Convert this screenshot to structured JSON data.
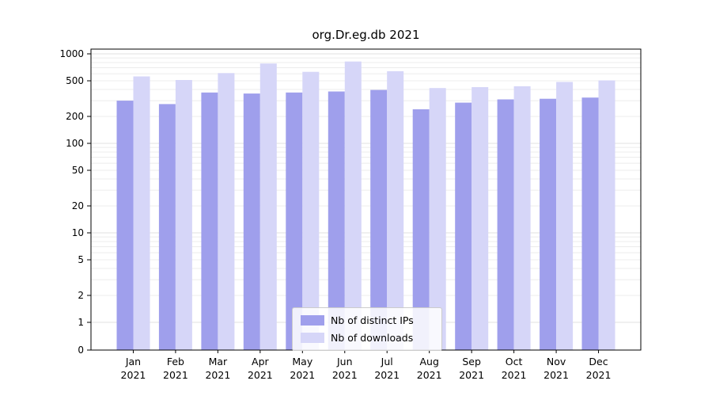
{
  "title": "org.Dr.eg.db 2021",
  "colors": {
    "distinct_ips": "#9f9fec",
    "downloads": "#d6d6f8",
    "grid_minor": "#ececec",
    "grid_major": "#e0e0e0",
    "axis": "#000000",
    "legend_border": "#cccccc",
    "background": "#ffffff"
  },
  "chart_data": {
    "type": "bar",
    "title": "org.Dr.eg.db 2021",
    "xlabel": "",
    "ylabel": "",
    "yscale": "log",
    "ylim": [
      0,
      1000
    ],
    "grid": true,
    "legend_position": "inside-bottom-center",
    "yticks": [
      "1000",
      "500",
      "200",
      "100",
      "50",
      "20",
      "10",
      "5",
      "2",
      "1",
      "0"
    ],
    "categories": [
      "Jan 2021",
      "Feb 2021",
      "Mar 2021",
      "Apr 2021",
      "May 2021",
      "Jun 2021",
      "Jul 2021",
      "Aug 2021",
      "Sep 2021",
      "Oct 2021",
      "Nov 2021",
      "Dec 2021"
    ],
    "series": [
      {
        "name": "Nb of distinct IPs",
        "color": "#9f9fec",
        "values": [
          300,
          275,
          370,
          360,
          370,
          380,
          395,
          240,
          285,
          310,
          315,
          325
        ]
      },
      {
        "name": "Nb of downloads",
        "color": "#d6d6f8",
        "values": [
          560,
          510,
          610,
          780,
          630,
          820,
          640,
          415,
          425,
          435,
          485,
          505
        ]
      }
    ]
  },
  "legend": {
    "items": [
      {
        "label": "Nb of distinct IPs",
        "color": "#9f9fec"
      },
      {
        "label": "Nb of downloads",
        "color": "#d6d6f8"
      }
    ]
  }
}
